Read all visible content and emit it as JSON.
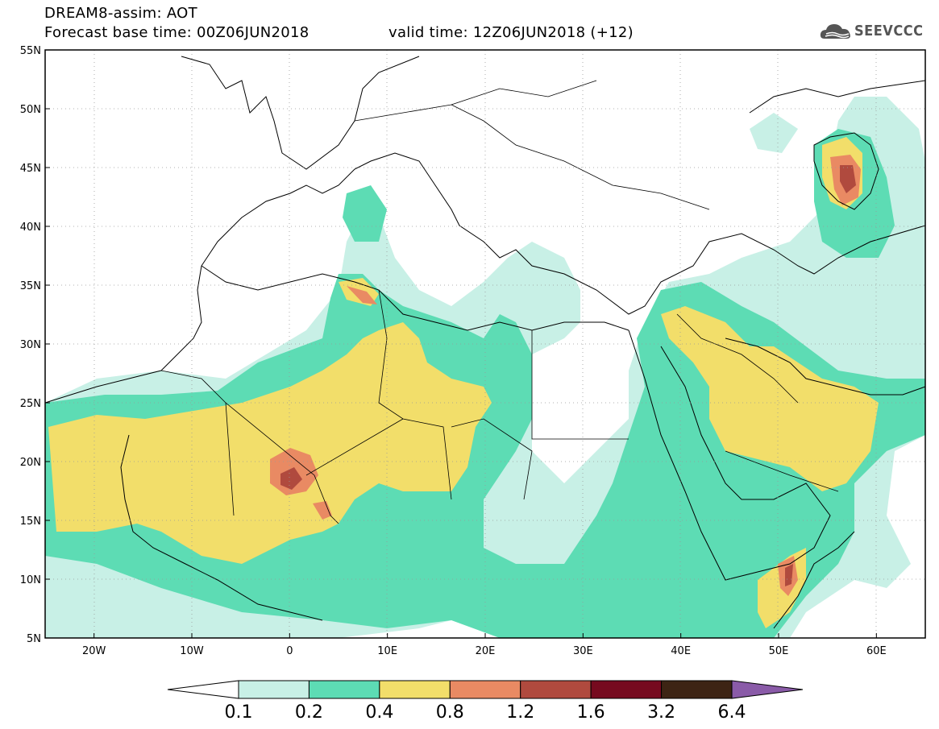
{
  "header": {
    "line1": "DREAM8-assim: AOT",
    "line2": "Forecast base time: 00Z06JUN2018",
    "valid": "valid time: 12Z06JUN2018 (+12)",
    "logo_text": "SEEVCCC",
    "logo_icon": "cloud-icon"
  },
  "map": {
    "lon_range": [
      -25,
      65
    ],
    "lat_range": [
      5,
      55
    ],
    "lon_ticks": [
      "20W",
      "10W",
      "0",
      "10E",
      "20E",
      "30E",
      "40E",
      "50E",
      "60E"
    ],
    "lat_ticks": [
      "55N",
      "50N",
      "45N",
      "40N",
      "35N",
      "30N",
      "25N",
      "20N",
      "15N",
      "10N",
      "5N"
    ]
  },
  "colorbar": {
    "levels": [
      "0.1",
      "0.2",
      "0.4",
      "0.8",
      "1.2",
      "1.6",
      "3.2",
      "6.4"
    ],
    "colors": [
      "#ffffff",
      "#c8f0e6",
      "#5ddcb4",
      "#f2de6a",
      "#e98a63",
      "#b04a3e",
      "#760a1f",
      "#3d2414",
      "#8a5ba8"
    ]
  }
}
